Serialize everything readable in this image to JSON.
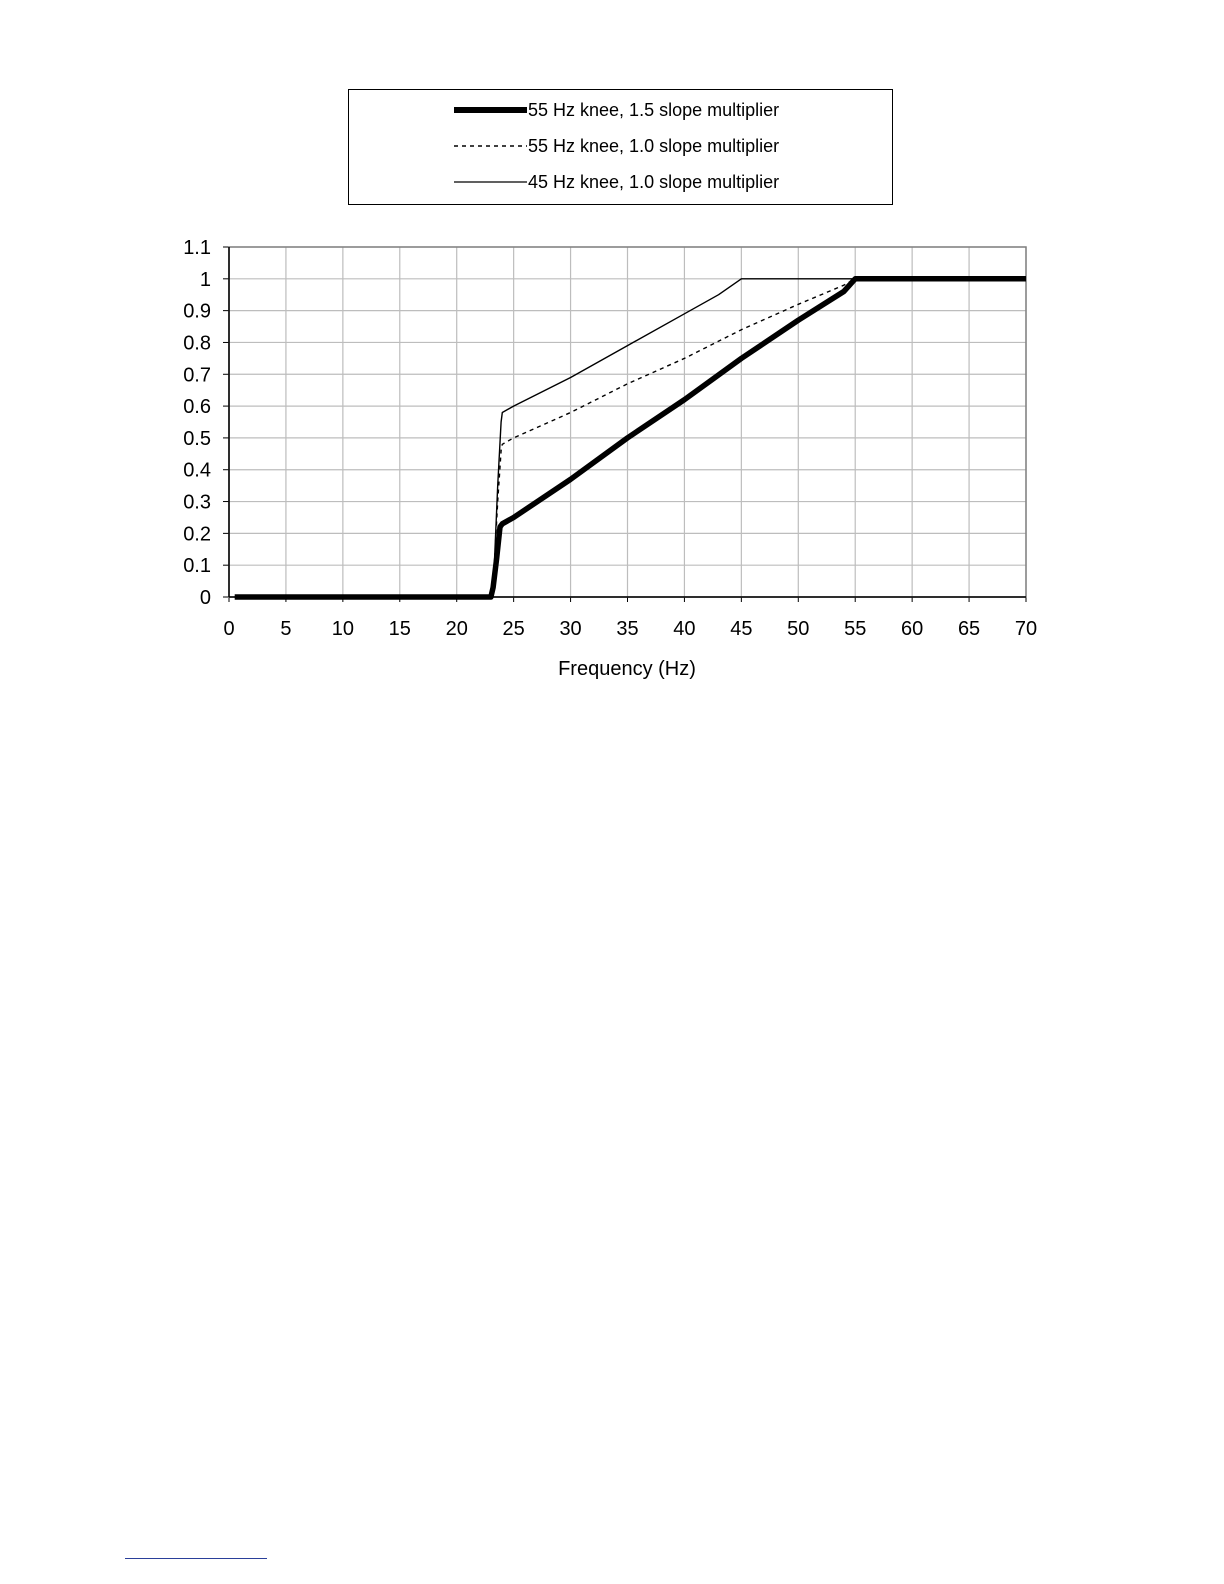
{
  "chart_data": {
    "type": "line",
    "title": "",
    "xlabel": "Frequency (Hz)",
    "ylabel": "",
    "xlim": [
      0,
      70
    ],
    "ylim": [
      0,
      1.1
    ],
    "xticks": [
      "0",
      "5",
      "10",
      "15",
      "20",
      "25",
      "30",
      "35",
      "40",
      "45",
      "50",
      "55",
      "60",
      "65",
      "70"
    ],
    "yticks": [
      "0",
      "0.1",
      "0.2",
      "0.3",
      "0.4",
      "0.5",
      "0.6",
      "0.7",
      "0.8",
      "0.9",
      "1",
      "1.1"
    ],
    "grid": true,
    "legend_position": "top",
    "series": [
      {
        "name": "55 Hz knee, 1.5 slope multiplier",
        "style": "thick",
        "x": [
          0.5,
          23,
          23.2,
          23.5,
          23.8,
          24,
          25,
          30,
          35,
          40,
          45,
          50,
          54,
          55,
          70
        ],
        "y": [
          0,
          0,
          0.03,
          0.12,
          0.22,
          0.23,
          0.25,
          0.37,
          0.5,
          0.62,
          0.75,
          0.87,
          0.96,
          1,
          1
        ]
      },
      {
        "name": "55 Hz knee, 1.0 slope multiplier",
        "style": "dashed",
        "x": [
          0.5,
          23,
          23.3,
          23.6,
          23.9,
          24,
          25,
          30,
          35,
          40,
          45,
          50,
          54,
          55,
          70
        ],
        "y": [
          0,
          0,
          0.1,
          0.3,
          0.46,
          0.48,
          0.5,
          0.58,
          0.67,
          0.75,
          0.84,
          0.92,
          0.98,
          1,
          1
        ]
      },
      {
        "name": "45 Hz knee, 1.0 slope multiplier",
        "style": "thin",
        "x": [
          0.5,
          23,
          23.3,
          23.6,
          23.9,
          24,
          25,
          30,
          35,
          40,
          43,
          45,
          70
        ],
        "y": [
          0,
          0,
          0.1,
          0.35,
          0.55,
          0.58,
          0.6,
          0.69,
          0.79,
          0.89,
          0.95,
          1,
          1
        ]
      }
    ]
  },
  "colors": {
    "lines": "#000000",
    "grid": "#bdbdbd",
    "frame": "#808080"
  }
}
